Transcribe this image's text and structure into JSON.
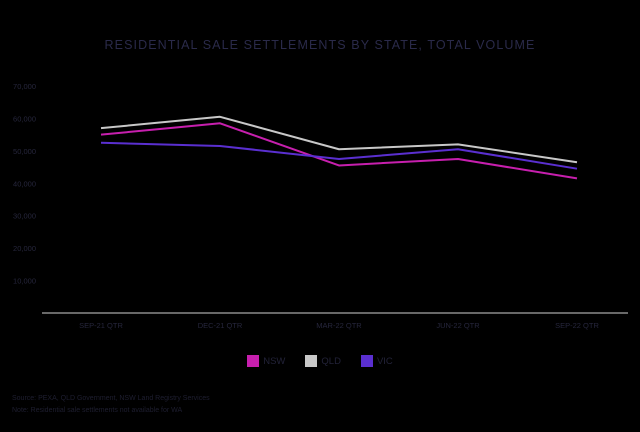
{
  "chart_data": {
    "type": "line",
    "title": "RESIDENTIAL SALE SETTLEMENTS BY STATE, TOTAL VOLUME",
    "categories": [
      "SEP-21 QTR",
      "DEC-21 QTR",
      "MAR-22 QTR",
      "JUN-22 QTR",
      "SEP-22 QTR"
    ],
    "y_ticks": [
      "10,000",
      "20,000",
      "30,000",
      "40,000",
      "50,000",
      "60,000",
      "70,000"
    ],
    "ylim": [
      0,
      70000
    ],
    "grid": false,
    "legend_position": "bottom-center",
    "series": [
      {
        "name": "NSW",
        "color": "#c71fae",
        "values": [
          55000,
          58500,
          45500,
          47500,
          41500
        ]
      },
      {
        "name": "QLD",
        "color": "#c8c8c8",
        "values": [
          57000,
          60500,
          50500,
          52000,
          46500
        ]
      },
      {
        "name": "VIC",
        "color": "#5a2fd0",
        "values": [
          52500,
          51500,
          47500,
          50500,
          44500
        ]
      }
    ]
  },
  "footnotes": {
    "source": "Source: PEXA, QLD Government, NSW Land Registry Services",
    "note": "Note: Residential sale settlements not available for WA"
  }
}
